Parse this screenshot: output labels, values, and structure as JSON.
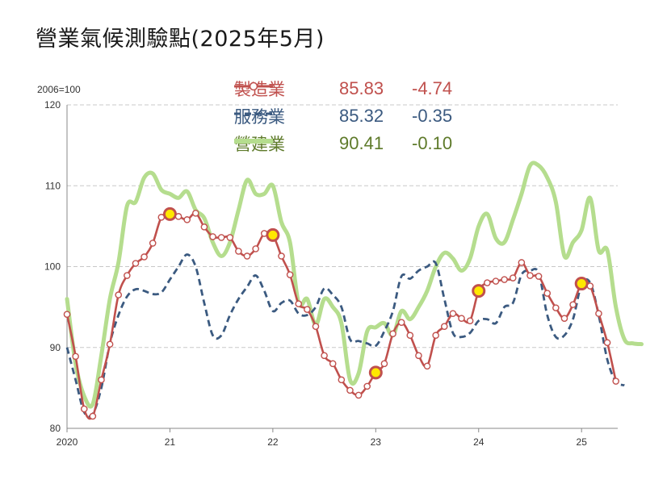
{
  "title": "營業氣候測驗點(2025年5月)",
  "unit_label": "2006=100",
  "legend": [
    {
      "name": "製造業",
      "value": "85.83",
      "change": "-4.74",
      "color": "#c0504d"
    },
    {
      "name": "服務業",
      "value": "85.32",
      "change": "-0.35",
      "color": "#3b5a80"
    },
    {
      "name": "營建業",
      "value": "90.41",
      "change": "-0.10",
      "color": "#5e7a2a",
      "line_color": "#b5dd8e"
    }
  ],
  "chart_data": {
    "type": "line",
    "ylim": [
      80,
      120
    ],
    "yticks": [
      "80",
      "90",
      "100",
      "110",
      "120"
    ],
    "xticks": [
      {
        "label": "2020",
        "t": 0
      },
      {
        "label": "21",
        "t": 12
      },
      {
        "label": "22",
        "t": 24
      },
      {
        "label": "23",
        "t": 36
      },
      {
        "label": "24",
        "t": 48
      },
      {
        "label": "25",
        "t": 60
      }
    ],
    "grid": true,
    "series": [
      {
        "name": "製造業",
        "style": "line-markers",
        "color": "#c0504d",
        "values": [
          94.1,
          88.9,
          82.4,
          81.5,
          86.0,
          90.4,
          96.5,
          98.9,
          100.4,
          101.2,
          102.9,
          106.1,
          106.5,
          106.2,
          105.8,
          106.6,
          104.9,
          103.7,
          103.6,
          103.6,
          101.9,
          101.3,
          102.2,
          104.1,
          103.9,
          101.3,
          99.0,
          95.4,
          94.7,
          92.6,
          89.0,
          88.0,
          86.0,
          84.7,
          84.1,
          85.2,
          86.9,
          88.0,
          91.7,
          93.1,
          91.5,
          89.0,
          87.7,
          91.5,
          92.6,
          94.2,
          93.6,
          93.3,
          97.0,
          98.0,
          98.2,
          98.4,
          98.6,
          100.5,
          98.9,
          98.8,
          96.7,
          94.9,
          93.6,
          95.3,
          97.9,
          97.6,
          94.2,
          90.6,
          85.83
        ],
        "highlights": [
          12,
          24,
          36,
          48,
          60
        ]
      },
      {
        "name": "服務業",
        "style": "dashed",
        "color": "#3b5a80",
        "values": [
          90.0,
          86.0,
          82.0,
          81.8,
          85.0,
          90.5,
          94.0,
          96.3,
          97.2,
          97.0,
          96.6,
          96.8,
          98.4,
          100.0,
          101.5,
          100.0,
          95.5,
          91.5,
          91.5,
          94.0,
          96.0,
          97.5,
          98.9,
          97.0,
          94.5,
          95.5,
          95.8,
          94.2,
          94.0,
          95.0,
          97.3,
          96.5,
          95.0,
          91.0,
          90.8,
          90.5,
          90.2,
          92.0,
          94.5,
          98.8,
          98.5,
          99.5,
          100.0,
          100.4,
          96.0,
          91.8,
          91.3,
          91.8,
          93.3,
          93.5,
          93.0,
          95.0,
          95.5,
          99.0,
          99.5,
          99.2,
          94.0,
          91.3,
          91.5,
          93.5,
          97.8,
          98.0,
          94.0,
          88.5,
          85.8,
          85.32
        ],
        "highlights": []
      },
      {
        "name": "營建業",
        "style": "thick",
        "color": "#b5dd8e",
        "values": [
          96.0,
          88.0,
          84.0,
          83.0,
          89.0,
          96.0,
          100.5,
          107.5,
          108.0,
          111.0,
          111.5,
          109.5,
          109.0,
          108.5,
          109.3,
          107.0,
          106.0,
          103.0,
          101.3,
          103.0,
          107.0,
          110.7,
          109.0,
          109.0,
          110.0,
          105.5,
          103.0,
          95.5,
          96.0,
          92.8,
          96.0,
          95.0,
          93.0,
          86.0,
          86.8,
          92.0,
          92.5,
          93.0,
          91.5,
          94.5,
          93.5,
          95.0,
          97.0,
          100.0,
          101.7,
          101.0,
          99.5,
          101.0,
          105.0,
          106.5,
          103.5,
          103.0,
          105.8,
          109.0,
          112.5,
          112.5,
          111.0,
          108.0,
          101.3,
          103.0,
          104.5,
          108.5,
          102.0,
          102.0,
          95.0,
          91.0,
          90.5,
          90.41
        ],
        "highlights": []
      }
    ]
  }
}
